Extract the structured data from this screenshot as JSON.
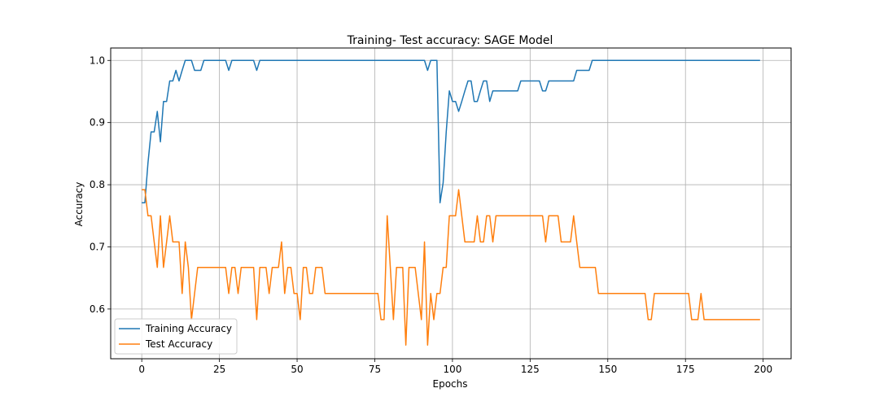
{
  "chart_data": {
    "type": "line",
    "title": "Training- Test accuracy: SAGE Model",
    "xlabel": "Epochs",
    "ylabel": "Accuracy",
    "xlim": [
      -10,
      209
    ],
    "ylim": [
      0.52,
      1.02
    ],
    "xticks": [
      0,
      25,
      50,
      75,
      100,
      125,
      150,
      175,
      200
    ],
    "yticks": [
      0.6,
      0.7,
      0.8,
      0.9,
      1.0
    ],
    "xtick_labels": [
      "0",
      "25",
      "50",
      "75",
      "100",
      "125",
      "150",
      "175",
      "200"
    ],
    "ytick_labels": [
      "0.6",
      "0.7",
      "0.8",
      "0.9",
      "1.0"
    ],
    "grid": true,
    "legend_position": "lower-left",
    "series": [
      {
        "name": "Training Accuracy",
        "color": "#1f77b4",
        "points": [
          [
            0,
            0.771
          ],
          [
            1,
            0.771
          ],
          [
            2,
            0.835
          ],
          [
            3,
            0.885
          ],
          [
            4,
            0.885
          ],
          [
            5,
            0.918
          ],
          [
            6,
            0.869
          ],
          [
            7,
            0.934
          ],
          [
            8,
            0.934
          ],
          [
            9,
            0.967
          ],
          [
            10,
            0.967
          ],
          [
            11,
            0.984
          ],
          [
            12,
            0.967
          ],
          [
            13,
            0.984
          ],
          [
            14,
            1.0
          ],
          [
            15,
            1.0
          ],
          [
            16,
            1.0
          ],
          [
            17,
            0.984
          ],
          [
            18,
            0.984
          ],
          [
            19,
            0.984
          ],
          [
            20,
            1.0
          ],
          [
            21,
            1.0
          ],
          [
            27,
            1.0
          ],
          [
            28,
            0.984
          ],
          [
            29,
            1.0
          ],
          [
            30,
            1.0
          ],
          [
            36,
            1.0
          ],
          [
            37,
            0.984
          ],
          [
            38,
            1.0
          ],
          [
            39,
            1.0
          ],
          [
            91,
            1.0
          ],
          [
            92,
            0.984
          ],
          [
            93,
            1.0
          ],
          [
            94,
            1.0
          ],
          [
            95,
            1.0
          ],
          [
            96,
            0.771
          ],
          [
            97,
            0.803
          ],
          [
            98,
            0.885
          ],
          [
            99,
            0.951
          ],
          [
            100,
            0.934
          ],
          [
            101,
            0.934
          ],
          [
            102,
            0.918
          ],
          [
            103,
            0.934
          ],
          [
            104,
            0.951
          ],
          [
            105,
            0.967
          ],
          [
            106,
            0.967
          ],
          [
            107,
            0.934
          ],
          [
            108,
            0.934
          ],
          [
            109,
            0.951
          ],
          [
            110,
            0.967
          ],
          [
            111,
            0.967
          ],
          [
            112,
            0.934
          ],
          [
            113,
            0.951
          ],
          [
            114,
            0.951
          ],
          [
            121,
            0.951
          ],
          [
            122,
            0.967
          ],
          [
            128,
            0.967
          ],
          [
            129,
            0.951
          ],
          [
            130,
            0.951
          ],
          [
            131,
            0.967
          ],
          [
            139,
            0.967
          ],
          [
            140,
            0.984
          ],
          [
            144,
            0.984
          ],
          [
            145,
            1.0
          ],
          [
            199,
            1.0
          ]
        ]
      },
      {
        "name": "Test Accuracy",
        "color": "#ff7f0e",
        "points": [
          [
            0,
            0.792
          ],
          [
            1,
            0.792
          ],
          [
            2,
            0.75
          ],
          [
            3,
            0.75
          ],
          [
            4,
            0.708
          ],
          [
            5,
            0.667
          ],
          [
            6,
            0.75
          ],
          [
            7,
            0.667
          ],
          [
            8,
            0.708
          ],
          [
            9,
            0.75
          ],
          [
            10,
            0.708
          ],
          [
            11,
            0.708
          ],
          [
            12,
            0.708
          ],
          [
            13,
            0.625
          ],
          [
            14,
            0.708
          ],
          [
            15,
            0.667
          ],
          [
            16,
            0.583
          ],
          [
            17,
            0.625
          ],
          [
            18,
            0.667
          ],
          [
            19,
            0.667
          ],
          [
            27,
            0.667
          ],
          [
            28,
            0.625
          ],
          [
            29,
            0.667
          ],
          [
            30,
            0.667
          ],
          [
            31,
            0.625
          ],
          [
            32,
            0.667
          ],
          [
            33,
            0.667
          ],
          [
            36,
            0.667
          ],
          [
            37,
            0.583
          ],
          [
            38,
            0.667
          ],
          [
            40,
            0.667
          ],
          [
            41,
            0.625
          ],
          [
            42,
            0.667
          ],
          [
            44,
            0.667
          ],
          [
            45,
            0.708
          ],
          [
            46,
            0.625
          ],
          [
            47,
            0.667
          ],
          [
            48,
            0.667
          ],
          [
            49,
            0.625
          ],
          [
            50,
            0.625
          ],
          [
            51,
            0.583
          ],
          [
            52,
            0.667
          ],
          [
            53,
            0.667
          ],
          [
            54,
            0.625
          ],
          [
            55,
            0.625
          ],
          [
            56,
            0.667
          ],
          [
            58,
            0.667
          ],
          [
            59,
            0.625
          ],
          [
            76,
            0.625
          ],
          [
            77,
            0.583
          ],
          [
            78,
            0.583
          ],
          [
            79,
            0.75
          ],
          [
            80,
            0.667
          ],
          [
            81,
            0.583
          ],
          [
            82,
            0.667
          ],
          [
            84,
            0.667
          ],
          [
            85,
            0.542
          ],
          [
            86,
            0.667
          ],
          [
            88,
            0.667
          ],
          [
            89,
            0.625
          ],
          [
            90,
            0.583
          ],
          [
            91,
            0.708
          ],
          [
            92,
            0.542
          ],
          [
            93,
            0.625
          ],
          [
            94,
            0.583
          ],
          [
            95,
            0.625
          ],
          [
            96,
            0.625
          ],
          [
            97,
            0.667
          ],
          [
            98,
            0.667
          ],
          [
            99,
            0.75
          ],
          [
            101,
            0.75
          ],
          [
            102,
            0.792
          ],
          [
            103,
            0.75
          ],
          [
            104,
            0.708
          ],
          [
            107,
            0.708
          ],
          [
            108,
            0.75
          ],
          [
            109,
            0.708
          ],
          [
            110,
            0.708
          ],
          [
            111,
            0.75
          ],
          [
            112,
            0.75
          ],
          [
            113,
            0.708
          ],
          [
            114,
            0.75
          ],
          [
            129,
            0.75
          ],
          [
            130,
            0.708
          ],
          [
            131,
            0.75
          ],
          [
            134,
            0.75
          ],
          [
            135,
            0.708
          ],
          [
            138,
            0.708
          ],
          [
            139,
            0.75
          ],
          [
            140,
            0.708
          ],
          [
            141,
            0.667
          ],
          [
            146,
            0.667
          ],
          [
            147,
            0.625
          ],
          [
            162,
            0.625
          ],
          [
            163,
            0.583
          ],
          [
            164,
            0.583
          ],
          [
            165,
            0.625
          ],
          [
            176,
            0.625
          ],
          [
            177,
            0.583
          ],
          [
            179,
            0.583
          ],
          [
            180,
            0.625
          ],
          [
            181,
            0.583
          ],
          [
            199,
            0.583
          ]
        ]
      }
    ]
  }
}
